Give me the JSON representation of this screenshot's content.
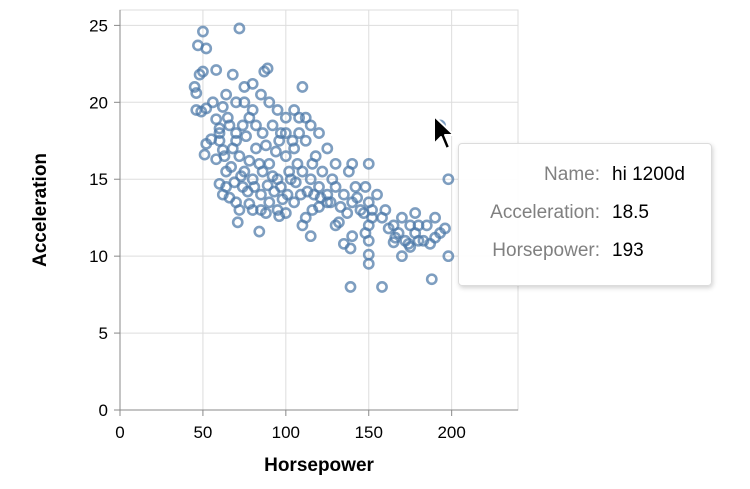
{
  "chart_data": {
    "type": "scatter",
    "title": "",
    "xlabel": "Horsepower",
    "ylabel": "Acceleration",
    "xlim": [
      0,
      240
    ],
    "ylim": [
      0,
      26
    ],
    "x_ticks": [
      "0",
      "50",
      "100",
      "150",
      "200"
    ],
    "y_ticks": [
      "0",
      "5",
      "10",
      "15",
      "20",
      "25"
    ],
    "grid": true,
    "marker": "hollow-circle",
    "marker_color": "#4c78a8",
    "points": [
      [
        72,
        24.8
      ],
      [
        50,
        24.6
      ],
      [
        52,
        23.5
      ],
      [
        47,
        23.7
      ],
      [
        48,
        21.8
      ],
      [
        45,
        21.0
      ],
      [
        46,
        20.6
      ],
      [
        46,
        19.5
      ],
      [
        49,
        19.4
      ],
      [
        52,
        19.6
      ],
      [
        50,
        22.0
      ],
      [
        58,
        22.1
      ],
      [
        68,
        21.8
      ],
      [
        75,
        21.0
      ],
      [
        80,
        21.2
      ],
      [
        87,
        22.0
      ],
      [
        89,
        22.2
      ],
      [
        110,
        21.0
      ],
      [
        56,
        20.0
      ],
      [
        62,
        19.7
      ],
      [
        64,
        20.5
      ],
      [
        58,
        18.9
      ],
      [
        60,
        18.3
      ],
      [
        55,
        17.6
      ],
      [
        52,
        17.3
      ],
      [
        51,
        16.6
      ],
      [
        58,
        16.3
      ],
      [
        62,
        16.9
      ],
      [
        64,
        15.5
      ],
      [
        60,
        14.7
      ],
      [
        64,
        14.5
      ],
      [
        62,
        14.0
      ],
      [
        66,
        13.8
      ],
      [
        70,
        13.5
      ],
      [
        72,
        13.0
      ],
      [
        74,
        14.5
      ],
      [
        78,
        13.4
      ],
      [
        80,
        13.0
      ],
      [
        85,
        13.0
      ],
      [
        88,
        12.8
      ],
      [
        90,
        13.5
      ],
      [
        95,
        13.0
      ],
      [
        96,
        12.6
      ],
      [
        98,
        13.7
      ],
      [
        100,
        12.8
      ],
      [
        105,
        13.5
      ],
      [
        110,
        12.0
      ],
      [
        112,
        12.5
      ],
      [
        116,
        13.0
      ],
      [
        120,
        13.2
      ],
      [
        125,
        13.5
      ],
      [
        130,
        12.0
      ],
      [
        132,
        12.2
      ],
      [
        71,
        12.2
      ],
      [
        84,
        11.6
      ],
      [
        115,
        11.3
      ],
      [
        140,
        11.3
      ],
      [
        135,
        10.8
      ],
      [
        139,
        10.5
      ],
      [
        150,
        10.1
      ],
      [
        150,
        9.5
      ],
      [
        165,
        10.9
      ],
      [
        170,
        10.0
      ],
      [
        175,
        10.6
      ],
      [
        180,
        11.0
      ],
      [
        190,
        11.2
      ],
      [
        193,
        11.5
      ],
      [
        198,
        10.0
      ],
      [
        139,
        8.0
      ],
      [
        158,
        8.0
      ],
      [
        188,
        8.5
      ],
      [
        198,
        15.0
      ],
      [
        193,
        18.5
      ],
      [
        68,
        17.0
      ],
      [
        70,
        18.0
      ],
      [
        72,
        16.5
      ],
      [
        75,
        15.5
      ],
      [
        76,
        17.8
      ],
      [
        78,
        16.2
      ],
      [
        80,
        15.0
      ],
      [
        82,
        17.0
      ],
      [
        84,
        16.0
      ],
      [
        86,
        15.5
      ],
      [
        88,
        17.2
      ],
      [
        90,
        16.0
      ],
      [
        92,
        15.2
      ],
      [
        94,
        16.8
      ],
      [
        95,
        15.0
      ],
      [
        97,
        18.0
      ],
      [
        100,
        16.5
      ],
      [
        102,
        15.5
      ],
      [
        105,
        17.0
      ],
      [
        107,
        16.0
      ],
      [
        110,
        15.5
      ],
      [
        112,
        17.5
      ],
      [
        115,
        15.0
      ],
      [
        118,
        16.5
      ],
      [
        120,
        14.5
      ],
      [
        122,
        15.5
      ],
      [
        125,
        14.0
      ],
      [
        128,
        15.0
      ],
      [
        130,
        14.5
      ],
      [
        135,
        14.0
      ],
      [
        138,
        15.5
      ],
      [
        140,
        13.5
      ],
      [
        142,
        14.5
      ],
      [
        145,
        13.0
      ],
      [
        148,
        14.5
      ],
      [
        150,
        13.5
      ],
      [
        152,
        12.5
      ],
      [
        150,
        12.0
      ],
      [
        148,
        11.5
      ],
      [
        150,
        11.0
      ],
      [
        155,
        14.0
      ],
      [
        160,
        13.0
      ],
      [
        165,
        12.0
      ],
      [
        168,
        11.5
      ],
      [
        170,
        12.5
      ],
      [
        172,
        11.0
      ],
      [
        175,
        12.0
      ],
      [
        178,
        11.5
      ],
      [
        180,
        12.0
      ],
      [
        185,
        12.0
      ],
      [
        190,
        12.5
      ],
      [
        150,
        16.0
      ],
      [
        140,
        16.0
      ],
      [
        130,
        16.0
      ],
      [
        125,
        17.0
      ],
      [
        120,
        18.0
      ],
      [
        115,
        18.5
      ],
      [
        108,
        19.0
      ],
      [
        105,
        19.5
      ],
      [
        100,
        19.0
      ],
      [
        95,
        19.5
      ],
      [
        90,
        20.0
      ],
      [
        85,
        20.5
      ],
      [
        80,
        19.5
      ],
      [
        75,
        20.0
      ],
      [
        70,
        20.0
      ],
      [
        65,
        19.0
      ],
      [
        60,
        18.0
      ],
      [
        66,
        18.5
      ],
      [
        70,
        17.5
      ],
      [
        74,
        18.5
      ],
      [
        78,
        19.0
      ],
      [
        82,
        18.5
      ],
      [
        86,
        18.0
      ],
      [
        92,
        18.5
      ],
      [
        96,
        17.5
      ],
      [
        100,
        18.0
      ],
      [
        104,
        17.5
      ],
      [
        108,
        18.0
      ],
      [
        112,
        19.0
      ],
      [
        116,
        16.0
      ],
      [
        60,
        17.5
      ],
      [
        63,
        16.5
      ],
      [
        67,
        15.8
      ],
      [
        69,
        14.8
      ],
      [
        73,
        15.2
      ],
      [
        77,
        14.2
      ],
      [
        81,
        14.5
      ],
      [
        85,
        14.0
      ],
      [
        89,
        14.6
      ],
      [
        93,
        14.2
      ],
      [
        97,
        14.5
      ],
      [
        101,
        14.0
      ],
      [
        103,
        15.0
      ],
      [
        106,
        14.8
      ],
      [
        109,
        14.0
      ],
      [
        113,
        14.2
      ],
      [
        117,
        14.0
      ],
      [
        121,
        13.8
      ],
      [
        127,
        13.5
      ],
      [
        133,
        13.2
      ],
      [
        137,
        12.8
      ],
      [
        143,
        13.8
      ],
      [
        147,
        12.8
      ],
      [
        152,
        13.0
      ],
      [
        158,
        12.5
      ],
      [
        162,
        11.8
      ],
      [
        166,
        11.2
      ],
      [
        174,
        10.8
      ],
      [
        178,
        12.8
      ],
      [
        183,
        11.0
      ],
      [
        187,
        10.8
      ],
      [
        196,
        11.8
      ]
    ],
    "tooltip": {
      "name_label": "Name:",
      "name_value": "hi 1200d",
      "acceleration_label": "Acceleration:",
      "acceleration_value": "18.5",
      "horsepower_label": "Horsepower:",
      "horsepower_value": "193"
    }
  },
  "colors": {
    "marker": "#4c78a8",
    "grid": "#dddddd",
    "axis": "#888888"
  }
}
